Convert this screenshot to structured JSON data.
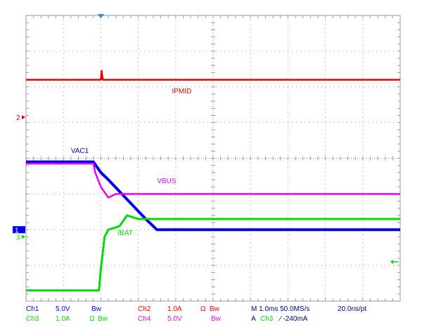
{
  "colors": {
    "background": "#ffffff",
    "grid": "#9a9a9a",
    "ch1": "#0000ee",
    "ch2": "#ee0000",
    "ch3": "#00dd00",
    "ch4": "#ee00ee",
    "trigger_marker": "#3a8ee6"
  },
  "chart_data": {
    "type": "line",
    "grid": true,
    "divisions": {
      "x": 10,
      "y": 8
    },
    "x_unit": "ms",
    "x_range": [
      0,
      10
    ],
    "y_unit": "div",
    "y_range": [
      0,
      8
    ],
    "trigger_x": 2.0,
    "series": [
      {
        "name": "IPMID",
        "channel": "Ch2",
        "color_key": "ch2",
        "x": [
          0,
          2.0,
          2.02,
          2.05,
          2.1,
          10
        ],
        "y": [
          6.2,
          6.2,
          6.45,
          6.2,
          6.2,
          6.2
        ]
      },
      {
        "name": "VAC1",
        "channel": "Ch1",
        "color_key": "ch1",
        "x": [
          0,
          1.8,
          2.0,
          2.2,
          3.2,
          3.5,
          10
        ],
        "y": [
          3.9,
          3.9,
          3.6,
          3.4,
          2.3,
          2.0,
          2.0
        ]
      },
      {
        "name": "VBUS",
        "channel": "Ch4",
        "color_key": "ch4",
        "x": [
          0,
          1.8,
          1.85,
          2.0,
          2.2,
          2.4,
          10
        ],
        "y": [
          3.85,
          3.85,
          3.6,
          3.2,
          2.9,
          3.0,
          3.0
        ]
      },
      {
        "name": "IBAT",
        "channel": "Ch3",
        "color_key": "ch3",
        "x": [
          0,
          1.95,
          2.0,
          2.1,
          2.2,
          2.5,
          2.7,
          3.0,
          10
        ],
        "y": [
          0.3,
          0.3,
          0.9,
          1.8,
          2.0,
          2.1,
          2.4,
          2.3,
          2.3
        ]
      }
    ],
    "trace_labels": [
      {
        "text": "IPMID",
        "x": 3.9,
        "y": 5.82,
        "color_key": "ch2"
      },
      {
        "text": "VAC1",
        "x": 1.2,
        "y": 4.15,
        "color_key": "ch1"
      },
      {
        "text": "VBUS",
        "x": 3.5,
        "y": 3.3,
        "color_key": "ch4"
      },
      {
        "text": "IBAT",
        "x": 2.45,
        "y": 1.85,
        "color_key": "ch3"
      }
    ],
    "channel_markers": [
      {
        "text": "2",
        "y": 5.15,
        "color_key": "ch2"
      },
      {
        "text": "1",
        "y": 2.0,
        "color_key": "ch1"
      },
      {
        "text": "3",
        "y": 1.8,
        "color_key": "ch3"
      }
    ]
  },
  "footer": {
    "row1": [
      {
        "text": "Ch1",
        "color_key": "ch1"
      },
      {
        "text": "5.0V",
        "color_key": "ch1"
      },
      {
        "text": "Bw",
        "color_key": "ch1"
      },
      {
        "text": "Ch2",
        "color_key": "ch2"
      },
      {
        "text": "1.0A",
        "color_key": "ch2"
      },
      {
        "text": "Ω",
        "color_key": "ch2"
      },
      {
        "text": "Bw",
        "color_key": "ch2"
      },
      {
        "text": "M 1.0ms 50.0MS/s",
        "color_key": "text"
      },
      {
        "text": "20.0ns/pt",
        "color_key": "text"
      }
    ],
    "row2": [
      {
        "text": "Ch3",
        "color_key": "ch3"
      },
      {
        "text": "1.0A",
        "color_key": "ch3"
      },
      {
        "text": "Ω",
        "color_key": "ch3"
      },
      {
        "text": "Bw",
        "color_key": "ch3"
      },
      {
        "text": "Ch4",
        "color_key": "ch4"
      },
      {
        "text": "5.0V",
        "color_key": "ch4"
      },
      {
        "text": "Bw",
        "color_key": "ch4"
      },
      {
        "text": "A",
        "color_key": "text"
      },
      {
        "text": "Ch3",
        "color_key": "ch3"
      },
      {
        "text": "∕ -240mA",
        "color_key": "text"
      }
    ]
  }
}
